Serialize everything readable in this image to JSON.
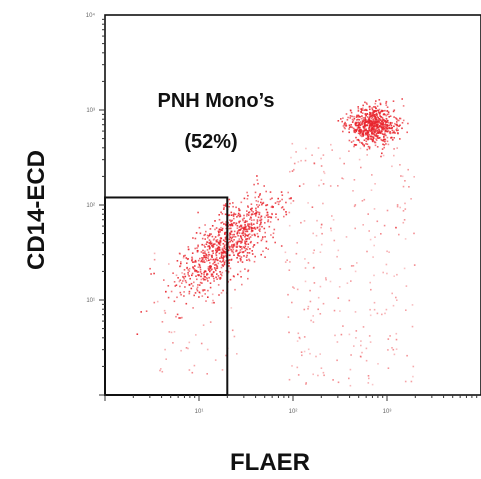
{
  "chart_data": {
    "type": "scatter",
    "title": "",
    "xlabel": "FLAER",
    "ylabel": "CD14-ECD",
    "x_scale": "log",
    "y_scale": "log",
    "xlim": [
      1,
      10000
    ],
    "ylim": [
      1,
      10000
    ],
    "x_ticks": [
      {
        "value": 10,
        "label": "10¹"
      },
      {
        "value": 100,
        "label": "10²"
      },
      {
        "value": 1000,
        "label": "10³"
      }
    ],
    "y_ticks": [
      {
        "value": 10,
        "label": "10¹"
      },
      {
        "value": 100,
        "label": "10²"
      },
      {
        "value": 1000,
        "label": "10³"
      },
      {
        "value": 10000,
        "label": "10⁴"
      }
    ],
    "point_color": "#e8242c",
    "populations": [
      {
        "center": [
          20,
          40
        ],
        "count": 900,
        "spread": [
          0.28,
          0.28
        ],
        "note": "FLAER-negative cluster inside gate"
      },
      {
        "center": [
          700,
          700
        ],
        "count": 700,
        "spread": [
          0.13,
          0.1
        ],
        "note": "FLAER-positive cluster"
      }
    ],
    "gate": {
      "x_range": [
        1,
        20
      ],
      "y_range": [
        1,
        120
      ],
      "label_lines": [
        "PNH Mono’s",
        "(52%)"
      ]
    }
  }
}
